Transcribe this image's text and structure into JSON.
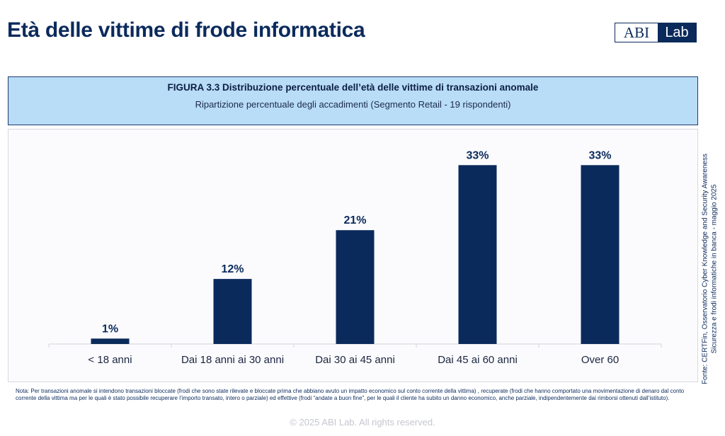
{
  "page": {
    "title": "Età delle vittime di frode informatica",
    "logo": {
      "left": "ABI",
      "right": "Lab"
    },
    "copyright": "© 2025 ABI Lab. All rights reserved."
  },
  "figure": {
    "title": "FIGURA 3.3  Distribuzione percentuale dell’età delle vittime di transazioni anomale",
    "subtitle": "Ripartizione percentuale degli accadimenti (Segmento Retail - 19 rispondenti)"
  },
  "source": {
    "line1": "Fonte: CERTFin, Osservatorio Cyber Knowledge and Security Awareness",
    "line2": "Sicurezza e frodi informatiche in banca - maggio 2025"
  },
  "note": "Nota: Per transazioni anomale si intendono transazioni bloccate (frodi che sono state rilevate e bloccate prima che abbiano avuto un impatto economico sul conto corrente della vittima) , recuperate (frodi che hanno comportato una movimentazione di denaro dal conto corrente della vittima ma per le quali è stato possibile recuperare l’importo transato, intero o parziale) ed effettive (frodi “andate a buon fine”, per le quali il cliente ha subito un danno economico, anche parziale, indipendentemente dai rimborsi ottenuti dall’istituto).",
  "colors": {
    "bar": "#0b2a5c",
    "header_bg": "#b9dcf7",
    "axis": "#d0d4dc"
  },
  "chart_data": {
    "type": "bar",
    "title": "Distribuzione percentuale dell’età delle vittime di transazioni anomale",
    "categories": [
      "< 18 anni",
      "Dai 18 anni ai 30 anni",
      "Dai 30 ai 45 anni",
      "Dai 45 ai 60 anni",
      "Over 60"
    ],
    "values": [
      1,
      12,
      21,
      33,
      33
    ],
    "value_labels": [
      "1%",
      "12%",
      "21%",
      "33%",
      "33%"
    ],
    "ylim": [
      0,
      35
    ],
    "xlabel": "",
    "ylabel": "",
    "grid": false,
    "legend": "none"
  }
}
